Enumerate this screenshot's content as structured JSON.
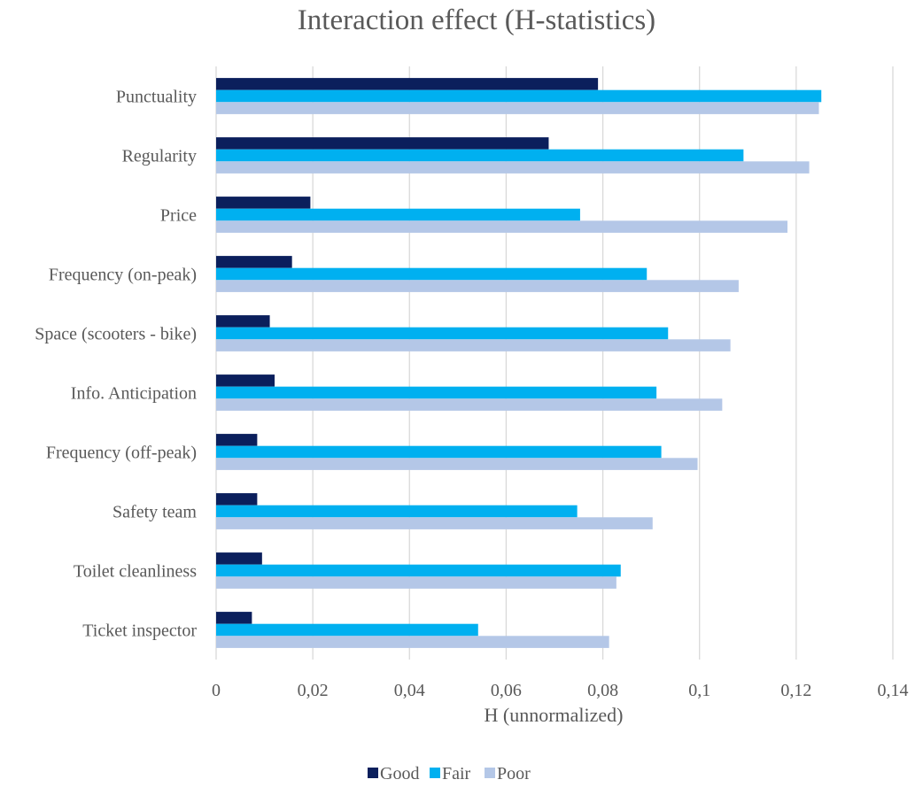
{
  "chart_data": {
    "type": "bar",
    "orientation": "horizontal",
    "title": "Interaction effect (H-statistics)",
    "xlabel": "H (unnormalized)",
    "ylabel": "",
    "xlim": [
      0,
      0.14
    ],
    "xticks": [
      0,
      0.02,
      0.04,
      0.06,
      0.08,
      0.1,
      0.12,
      0.14
    ],
    "xtick_labels": [
      "0",
      "0,02",
      "0,04",
      "0,06",
      "0,08",
      "0,1",
      "0,12",
      "0,14"
    ],
    "categories": [
      "Punctuality",
      "Regularity",
      "Price",
      "Frequency (on-peak)",
      "Space (scooters - bike)",
      "Info. Anticipation",
      "Frequency (off-peak)",
      "Safety team",
      "Toilet cleanliness",
      "Ticket inspector"
    ],
    "series": [
      {
        "name": "Good",
        "color": "#0b1f5c",
        "values": [
          0.079,
          0.0688,
          0.0195,
          0.0157,
          0.0111,
          0.0121,
          0.0085,
          0.0085,
          0.0095,
          0.0074
        ]
      },
      {
        "name": "Fair",
        "color": "#00b0f0",
        "values": [
          0.1252,
          0.1091,
          0.0753,
          0.0891,
          0.0935,
          0.0911,
          0.0921,
          0.0747,
          0.0837,
          0.0542
        ]
      },
      {
        "name": "Poor",
        "color": "#b4c7e7",
        "values": [
          0.1247,
          0.1227,
          0.1182,
          0.1081,
          0.1064,
          0.1047,
          0.0996,
          0.0903,
          0.0828,
          0.0813
        ]
      }
    ],
    "grid": true,
    "grid_color": "#d9d9d9",
    "legend_position": "bottom-center"
  }
}
